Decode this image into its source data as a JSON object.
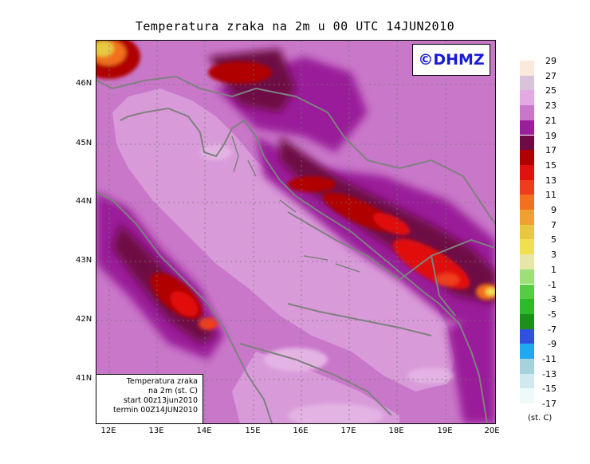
{
  "title": "Temperatura zraka na 2m u 00 UTC 14JUN2010",
  "watermark": "©DHMZ",
  "info_box": {
    "line1": "Temperatura zraka",
    "line2": "na 2m (st. C)",
    "line3": "start 00z13jun2010",
    "line4": "termin 00Z14JUN2010"
  },
  "lat_labels": [
    "46N",
    "45N",
    "44N",
    "43N",
    "42N",
    "41N"
  ],
  "lon_labels": [
    "12E",
    "13E",
    "14E",
    "15E",
    "16E",
    "17E",
    "18E",
    "19E",
    "20E"
  ],
  "legend": {
    "labels": [
      "29",
      "27",
      "25",
      "23",
      "21",
      "19",
      "17",
      "15",
      "13",
      "11",
      "9",
      "7",
      "5",
      "3",
      "1",
      "-1",
      "-3",
      "-5",
      "-7",
      "-9",
      "-11",
      "-13",
      "-15",
      "-17"
    ],
    "colors": [
      "#fbe9dc",
      "#d9c3d9",
      "#e3a9e3",
      "#c977c9",
      "#9a1f9a",
      "#6e0b45",
      "#b00000",
      "#e11111",
      "#f03c1e",
      "#f2701e",
      "#f0a030",
      "#e8c840",
      "#f0e050",
      "#e6e6a8",
      "#9de07a",
      "#55cc44",
      "#2dba2d",
      "#1d8f1d",
      "#3050e0",
      "#20a8f0",
      "#a6d2dc",
      "#cfe9ee",
      "#eefafa"
    ],
    "unit": "(st. C)"
  },
  "theme_colors": {
    "sea": "#d99ad9",
    "coast": "#808080"
  }
}
